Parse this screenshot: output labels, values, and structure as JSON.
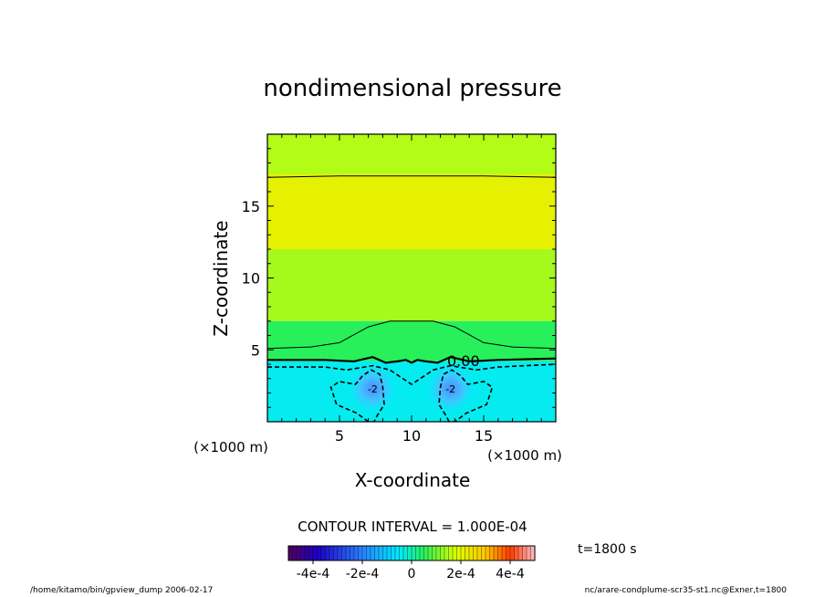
{
  "chart_data": {
    "type": "heatmap",
    "title": "nondimensional pressure",
    "xlabel": "X-coordinate",
    "ylabel": "Z-coordinate",
    "x_unit": "(×1000 m)",
    "y_unit": "(×1000 m)",
    "xlim": [
      0,
      20
    ],
    "ylim": [
      0,
      20
    ],
    "xticks": [
      5,
      10,
      15
    ],
    "yticks": [
      5,
      10,
      15
    ],
    "contour_interval_text": "CONTOUR INTERVAL = 1.000E-04",
    "contour_interval": 0.0001,
    "contour_label": "0.00",
    "time_label": "t=1800 s",
    "colorbar": {
      "range": [
        -0.0005,
        0.0005
      ],
      "tick_labels": [
        "-4e-4",
        "-2e-4",
        "0",
        "2e-4",
        "4e-4"
      ],
      "tick_values": [
        -0.0004,
        -0.0002,
        0,
        0.0002,
        0.0004
      ]
    },
    "field_bands": [
      {
        "z0": 17.2,
        "z1": 20.0,
        "value": 0.00015
      },
      {
        "z0": 12.0,
        "z1": 17.2,
        "value": 0.00021
      },
      {
        "z0": 7.0,
        "z1": 12.0,
        "value": 0.00014
      },
      {
        "z0": 4.2,
        "z1": 7.0,
        "value": 5e-05
      },
      {
        "z0": 0.0,
        "z1": 4.2,
        "value": -4e-05
      }
    ],
    "low_centers": [
      {
        "x": 7.3,
        "z": 2.3,
        "label": "-2"
      },
      {
        "x": 12.7,
        "z": 2.3,
        "label": "-2"
      }
    ],
    "contours": [
      {
        "level": 0.0001,
        "style": "solid",
        "points": [
          [
            0,
            17.0
          ],
          [
            5,
            17.1
          ],
          [
            10,
            17.1
          ],
          [
            15,
            17.1
          ],
          [
            20,
            17.0
          ]
        ]
      },
      {
        "level": 0.0001,
        "style": "solid",
        "points": [
          [
            0,
            5.1
          ],
          [
            3,
            5.2
          ],
          [
            5,
            5.5
          ],
          [
            7,
            6.6
          ],
          [
            8.5,
            7.0
          ],
          [
            11.5,
            7.0
          ],
          [
            13,
            6.6
          ],
          [
            15,
            5.5
          ],
          [
            17,
            5.2
          ],
          [
            20,
            5.1
          ]
        ]
      },
      {
        "level": 0,
        "style": "thick",
        "points": [
          [
            0,
            4.3
          ],
          [
            4,
            4.3
          ],
          [
            6,
            4.2
          ],
          [
            7.3,
            4.5
          ],
          [
            8.2,
            4.1
          ],
          [
            9,
            4.2
          ],
          [
            9.6,
            4.3
          ],
          [
            10,
            4.1
          ],
          [
            10.4,
            4.3
          ],
          [
            11,
            4.2
          ],
          [
            11.8,
            4.1
          ],
          [
            12.7,
            4.5
          ],
          [
            14,
            4.2
          ],
          [
            16,
            4.3
          ],
          [
            20,
            4.4
          ]
        ]
      },
      {
        "level": -0.0001,
        "style": "dashed",
        "points": [
          [
            0,
            3.8
          ],
          [
            4,
            3.8
          ],
          [
            5.5,
            3.6
          ],
          [
            7.3,
            3.9
          ],
          [
            8.5,
            3.6
          ],
          [
            10,
            2.6
          ],
          [
            11.5,
            3.6
          ],
          [
            12.7,
            3.9
          ],
          [
            14.5,
            3.6
          ],
          [
            16,
            3.8
          ],
          [
            20,
            4.0
          ]
        ]
      },
      {
        "level": -0.0001,
        "style": "dashed",
        "closed": true,
        "points": [
          [
            7.0,
            0.0
          ],
          [
            6.2,
            0.6
          ],
          [
            4.8,
            1.2
          ],
          [
            4.4,
            2.4
          ],
          [
            5.0,
            2.8
          ],
          [
            6.1,
            2.6
          ],
          [
            6.6,
            3.2
          ],
          [
            7.2,
            3.6
          ],
          [
            7.8,
            3.3
          ],
          [
            8.0,
            2.4
          ],
          [
            8.1,
            1.2
          ],
          [
            7.6,
            0.4
          ],
          [
            7.4,
            0.0
          ]
        ]
      },
      {
        "level": -0.0001,
        "style": "dashed",
        "closed": true,
        "points": [
          [
            12.6,
            0.0
          ],
          [
            12.4,
            0.4
          ],
          [
            11.9,
            1.2
          ],
          [
            12.0,
            2.4
          ],
          [
            12.2,
            3.3
          ],
          [
            12.8,
            3.6
          ],
          [
            13.4,
            3.2
          ],
          [
            13.9,
            2.6
          ],
          [
            15.0,
            2.8
          ],
          [
            15.6,
            2.4
          ],
          [
            15.2,
            1.2
          ],
          [
            13.8,
            0.6
          ],
          [
            13.0,
            0.0
          ]
        ]
      }
    ]
  },
  "footer": {
    "left": "/home/kitamo/bin/gpview_dump  2006-02-17",
    "right": "nc/arare-condplume-scr35-st1.nc@Exner,t=1800"
  }
}
